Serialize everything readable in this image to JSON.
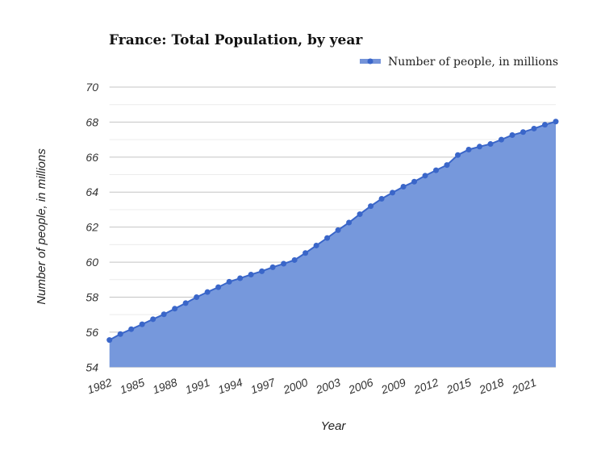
{
  "chart_data": {
    "type": "area",
    "title": "France: Total Population, by year",
    "xlabel": "Year",
    "ylabel": "Number of people, in millions",
    "ylim": [
      54,
      70
    ],
    "yticks": [
      54,
      56,
      58,
      60,
      62,
      64,
      66,
      68,
      70
    ],
    "xticks": [
      1982,
      1985,
      1988,
      1991,
      1994,
      1997,
      2000,
      2003,
      2006,
      2009,
      2012,
      2015,
      2018,
      2021
    ],
    "grid": true,
    "legend_position": "top-right",
    "series": [
      {
        "name": "Number of people, in millions",
        "color": "#3a66c9",
        "fill": "#7698dc",
        "x": [
          1982,
          1983,
          1984,
          1985,
          1986,
          1987,
          1988,
          1989,
          1990,
          1991,
          1992,
          1993,
          1994,
          1995,
          1996,
          1997,
          1998,
          1999,
          2000,
          2001,
          2002,
          2003,
          2004,
          2005,
          2006,
          2007,
          2008,
          2009,
          2010,
          2011,
          2012,
          2013,
          2014,
          2015,
          2016,
          2017,
          2018,
          2019,
          2020,
          2021,
          2022,
          2023
        ],
        "values": [
          55.55,
          55.89,
          56.17,
          56.45,
          56.74,
          57.02,
          57.34,
          57.66,
          58.0,
          58.29,
          58.57,
          58.88,
          59.08,
          59.29,
          59.48,
          59.71,
          59.91,
          60.12,
          60.52,
          60.95,
          61.38,
          61.83,
          62.26,
          62.74,
          63.2,
          63.62,
          63.97,
          64.31,
          64.6,
          64.94,
          65.25,
          65.55,
          66.12,
          66.43,
          66.6,
          66.75,
          67.0,
          67.26,
          67.43,
          67.63,
          67.85,
          68.03
        ]
      }
    ]
  }
}
